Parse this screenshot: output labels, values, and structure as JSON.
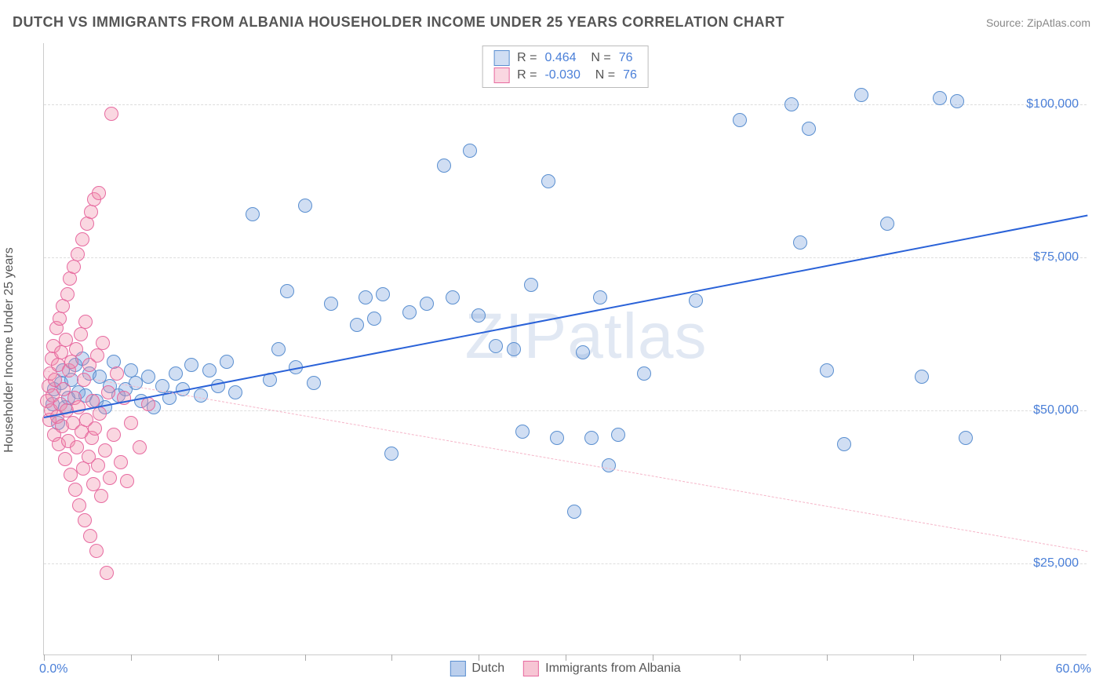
{
  "header": {
    "title": "DUTCH VS IMMIGRANTS FROM ALBANIA HOUSEHOLDER INCOME UNDER 25 YEARS CORRELATION CHART",
    "source": "Source: ZipAtlas.com"
  },
  "watermark": {
    "part1": "ZIP",
    "part2": "atlas"
  },
  "chart": {
    "type": "scatter",
    "ylabel": "Householder Income Under 25 years",
    "xlim": [
      0,
      60
    ],
    "ylim": [
      10000,
      110000
    ],
    "xtick_positions": [
      0,
      5,
      10,
      15,
      20,
      25,
      30,
      35,
      40,
      45,
      50,
      55
    ],
    "xaxis_min_label": "0.0%",
    "xaxis_max_label": "60.0%",
    "ytick_values": [
      25000,
      50000,
      75000,
      100000
    ],
    "ytick_labels": [
      "$25,000",
      "$50,000",
      "$75,000",
      "$100,000"
    ],
    "grid_color": "#dddddd",
    "axis_label_color": "#4a7fd8",
    "background_color": "#ffffff",
    "marker_radius": 9,
    "marker_stroke_width": 1.2,
    "series": [
      {
        "name": "Dutch",
        "color_fill": "rgba(120,160,220,0.35)",
        "color_stroke": "#5a8fd0",
        "R": "0.464",
        "N": "76",
        "trend": {
          "x1": 0,
          "y1": 49000,
          "x2": 60,
          "y2": 82000,
          "color": "#2a62d8",
          "width": 2.5,
          "dash": "solid"
        },
        "points": [
          [
            0.5,
            51000
          ],
          [
            0.6,
            53500
          ],
          [
            0.8,
            48000
          ],
          [
            1.0,
            54500
          ],
          [
            1.1,
            56500
          ],
          [
            1.2,
            50500
          ],
          [
            1.4,
            52000
          ],
          [
            1.6,
            55000
          ],
          [
            1.8,
            57500
          ],
          [
            2.0,
            53000
          ],
          [
            2.2,
            58500
          ],
          [
            2.4,
            52500
          ],
          [
            2.6,
            56000
          ],
          [
            3.0,
            51500
          ],
          [
            3.2,
            55500
          ],
          [
            3.5,
            50500
          ],
          [
            3.8,
            54000
          ],
          [
            4.0,
            58000
          ],
          [
            4.3,
            52500
          ],
          [
            4.7,
            53500
          ],
          [
            5.0,
            56500
          ],
          [
            5.3,
            54500
          ],
          [
            5.6,
            51500
          ],
          [
            6.0,
            55500
          ],
          [
            6.3,
            50500
          ],
          [
            6.8,
            54000
          ],
          [
            7.2,
            52000
          ],
          [
            7.6,
            56000
          ],
          [
            8.0,
            53500
          ],
          [
            8.5,
            57500
          ],
          [
            9.0,
            52500
          ],
          [
            9.5,
            56500
          ],
          [
            10.0,
            54000
          ],
          [
            10.5,
            58000
          ],
          [
            11.0,
            53000
          ],
          [
            12.0,
            82000
          ],
          [
            13.0,
            55000
          ],
          [
            13.5,
            60000
          ],
          [
            14.0,
            69500
          ],
          [
            14.5,
            57000
          ],
          [
            15.0,
            83500
          ],
          [
            15.5,
            54500
          ],
          [
            16.5,
            67500
          ],
          [
            18.0,
            64000
          ],
          [
            18.5,
            68500
          ],
          [
            19.0,
            65000
          ],
          [
            19.5,
            69000
          ],
          [
            20.0,
            43000
          ],
          [
            21.0,
            66000
          ],
          [
            22.0,
            67500
          ],
          [
            23.0,
            90000
          ],
          [
            23.5,
            68500
          ],
          [
            24.5,
            92500
          ],
          [
            25.0,
            65500
          ],
          [
            26.0,
            60500
          ],
          [
            27.0,
            60000
          ],
          [
            27.5,
            46500
          ],
          [
            28.0,
            70500
          ],
          [
            29.0,
            87500
          ],
          [
            29.5,
            45500
          ],
          [
            30.5,
            33500
          ],
          [
            31.0,
            59500
          ],
          [
            31.5,
            45500
          ],
          [
            32.0,
            68500
          ],
          [
            32.5,
            41000
          ],
          [
            33.0,
            46000
          ],
          [
            34.5,
            56000
          ],
          [
            37.5,
            68000
          ],
          [
            40.0,
            97500
          ],
          [
            43.0,
            100000
          ],
          [
            43.5,
            77500
          ],
          [
            44.0,
            96000
          ],
          [
            45.0,
            56500
          ],
          [
            46.0,
            44500
          ],
          [
            47.0,
            101500
          ],
          [
            48.5,
            80500
          ],
          [
            50.5,
            55500
          ],
          [
            51.5,
            101000
          ],
          [
            52.5,
            100500
          ],
          [
            53.0,
            45500
          ]
        ]
      },
      {
        "name": "Immigrants from Albania",
        "color_fill": "rgba(240,140,170,0.35)",
        "color_stroke": "#e76aa0",
        "R": "-0.030",
        "N": "76",
        "trend": {
          "x1": 0,
          "y1": 56500,
          "x2": 60,
          "y2": 27000,
          "color": "#f5b5c8",
          "width": 1.5,
          "dash": "dashed"
        },
        "points": [
          [
            0.2,
            51500
          ],
          [
            0.25,
            54000
          ],
          [
            0.3,
            48500
          ],
          [
            0.35,
            56000
          ],
          [
            0.4,
            50000
          ],
          [
            0.45,
            58500
          ],
          [
            0.5,
            52500
          ],
          [
            0.55,
            60500
          ],
          [
            0.6,
            46000
          ],
          [
            0.65,
            55000
          ],
          [
            0.7,
            63500
          ],
          [
            0.75,
            49000
          ],
          [
            0.8,
            57500
          ],
          [
            0.85,
            44500
          ],
          [
            0.9,
            65000
          ],
          [
            0.95,
            51000
          ],
          [
            1.0,
            59500
          ],
          [
            1.05,
            47500
          ],
          [
            1.1,
            67000
          ],
          [
            1.15,
            53500
          ],
          [
            1.2,
            42000
          ],
          [
            1.25,
            61500
          ],
          [
            1.3,
            50000
          ],
          [
            1.35,
            69000
          ],
          [
            1.4,
            45000
          ],
          [
            1.45,
            56500
          ],
          [
            1.5,
            71500
          ],
          [
            1.55,
            39500
          ],
          [
            1.6,
            58000
          ],
          [
            1.65,
            48000
          ],
          [
            1.7,
            73500
          ],
          [
            1.75,
            52000
          ],
          [
            1.8,
            37000
          ],
          [
            1.85,
            60000
          ],
          [
            1.9,
            44000
          ],
          [
            1.95,
            75500
          ],
          [
            2.0,
            50500
          ],
          [
            2.05,
            34500
          ],
          [
            2.1,
            62500
          ],
          [
            2.15,
            46500
          ],
          [
            2.2,
            78000
          ],
          [
            2.25,
            40500
          ],
          [
            2.3,
            55000
          ],
          [
            2.35,
            32000
          ],
          [
            2.4,
            64500
          ],
          [
            2.45,
            48500
          ],
          [
            2.5,
            80500
          ],
          [
            2.55,
            42500
          ],
          [
            2.6,
            57500
          ],
          [
            2.65,
            29500
          ],
          [
            2.7,
            82500
          ],
          [
            2.75,
            45500
          ],
          [
            2.8,
            51500
          ],
          [
            2.85,
            38000
          ],
          [
            2.9,
            84500
          ],
          [
            2.95,
            47000
          ],
          [
            3.0,
            27000
          ],
          [
            3.05,
            59000
          ],
          [
            3.1,
            41000
          ],
          [
            3.15,
            85500
          ],
          [
            3.2,
            49500
          ],
          [
            3.3,
            36000
          ],
          [
            3.4,
            61000
          ],
          [
            3.5,
            43500
          ],
          [
            3.6,
            23500
          ],
          [
            3.7,
            53000
          ],
          [
            3.8,
            39000
          ],
          [
            3.9,
            98500
          ],
          [
            4.0,
            46000
          ],
          [
            4.2,
            56000
          ],
          [
            4.4,
            41500
          ],
          [
            4.6,
            52000
          ],
          [
            4.8,
            38500
          ],
          [
            5.0,
            48000
          ],
          [
            5.5,
            44000
          ],
          [
            6.0,
            51000
          ]
        ]
      }
    ],
    "legend_bottom": [
      {
        "label": "Dutch",
        "fill": "rgba(120,160,220,0.5)",
        "stroke": "#5a8fd0"
      },
      {
        "label": "Immigrants from Albania",
        "fill": "rgba(240,140,170,0.5)",
        "stroke": "#e76aa0"
      }
    ]
  }
}
